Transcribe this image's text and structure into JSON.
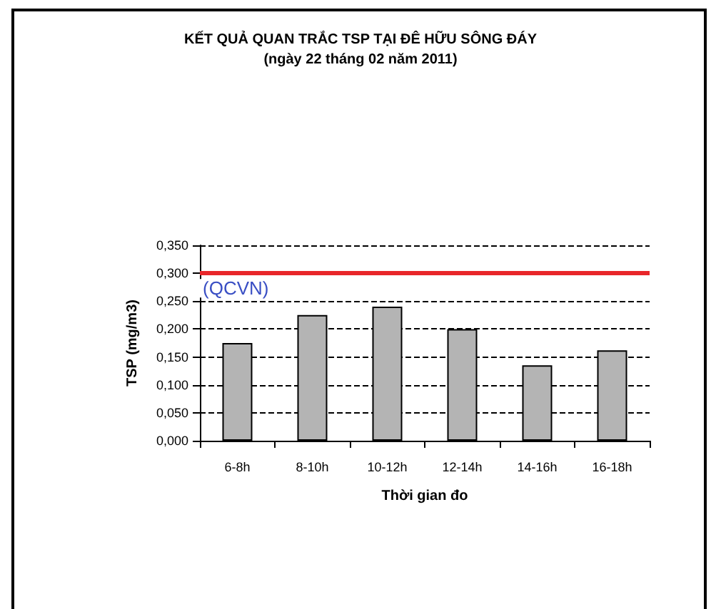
{
  "chart_data": {
    "type": "bar",
    "title": "KẾT QUẢ QUAN TRẮC TSP TẠI ĐÊ HỮU SÔNG ĐÁY",
    "subtitle": "(ngày 22 tháng 02 năm 2011)",
    "xlabel": "Thời gian đo",
    "ylabel": "TSP (mg/m3)",
    "categories": [
      "6-8h",
      "8-10h",
      "10-12h",
      "12-14h",
      "14-16h",
      "16-18h"
    ],
    "values": [
      0.175,
      0.225,
      0.24,
      0.2,
      0.135,
      0.162
    ],
    "color": "#b4b4b4",
    "ylim": [
      0,
      0.35
    ],
    "yticks": [
      {
        "value": 0,
        "label": "0,000"
      },
      {
        "value": 0.05,
        "label": "0,050"
      },
      {
        "value": 0.1,
        "label": "0,100"
      },
      {
        "value": 0.15,
        "label": "0,150"
      },
      {
        "value": 0.2,
        "label": "0,200"
      },
      {
        "value": 0.25,
        "label": "0,250"
      },
      {
        "value": 0.3,
        "label": "0,300"
      },
      {
        "value": 0.35,
        "label": "0,350"
      }
    ],
    "grid": "y",
    "ref_lines": [
      {
        "axis": "y",
        "value": 0.3,
        "label": "(QCVN)",
        "color": "#e8262a",
        "line_style": "solid"
      }
    ]
  }
}
